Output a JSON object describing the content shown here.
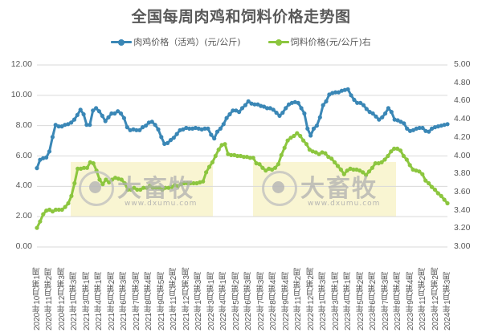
{
  "chart_data": {
    "type": "line",
    "title": "全国每周肉鸡和饲料价格走势图",
    "xlabel": "",
    "ylabel_left": "",
    "ylabel_right": "",
    "left_axis": {
      "min": 0,
      "max": 12,
      "step": 2,
      "ticks": [
        "0.00",
        "2.00",
        "4.00",
        "6.00",
        "8.00",
        "10.00",
        "12.00"
      ]
    },
    "right_axis": {
      "min": 3.0,
      "max": 5.0,
      "step": 0.2,
      "ticks": [
        "3.00",
        "3.20",
        "3.40",
        "3.60",
        "3.80",
        "4.00",
        "4.20",
        "4.40",
        "4.60",
        "4.80",
        "5.00"
      ]
    },
    "grid": true,
    "legend_position": "top",
    "x_tick_labels": [
      "2020年10月第1周",
      "2020年11月第2周",
      "2020年12月第3周",
      "2021年1月第3周",
      "2021年3月第1周",
      "2021年4月第1周",
      "2021年5月第2周",
      "2021年6月第3周",
      "2021年7月第3周",
      "2021年8月第4周",
      "2021年9月第5周",
      "2021年11月第2周",
      "2021年12月第3周",
      "2022年1月第3周",
      "2022年3月第1周",
      "2022年4月第1周",
      "2022年5月第2周",
      "2022年6月第3周",
      "2022年7月第3周",
      "2022年8月第4周",
      "2022年9月第4周",
      "2022年11月第2周",
      "2022年12月第2周",
      "2023年1月第3周",
      "2023年3月第1周",
      "2023年4月第1周",
      "2023年5月第2周",
      "2023年6月第2周",
      "2023年7月第3周",
      "2023年8月第4周",
      "2023年9月第4周",
      "2023年11月第2周",
      "2023年12月第2周",
      "2024年1月第3周"
    ],
    "series": [
      {
        "name": "肉鸡价格（活鸡）(元/公斤)",
        "axis": "left",
        "color": "#3A87B6",
        "values": [
          5.2,
          5.75,
          5.85,
          5.9,
          6.3,
          7.25,
          8.05,
          7.95,
          7.95,
          8.05,
          8.1,
          8.2,
          8.4,
          8.7,
          9.05,
          8.75,
          8.05,
          8.05,
          9.0,
          9.15,
          8.95,
          8.65,
          8.3,
          8.55,
          8.8,
          8.8,
          8.95,
          8.8,
          8.5,
          7.9,
          7.7,
          7.75,
          7.7,
          7.7,
          7.9,
          8.0,
          8.2,
          8.25,
          8.05,
          7.75,
          7.25,
          6.8,
          6.85,
          7.05,
          7.2,
          7.45,
          7.7,
          7.75,
          7.85,
          7.8,
          7.8,
          7.85,
          7.8,
          7.75,
          7.8,
          7.8,
          7.4,
          7.15,
          7.6,
          7.8,
          8.1,
          8.5,
          8.75,
          9.0,
          9.0,
          8.9,
          9.15,
          9.35,
          9.6,
          9.45,
          9.4,
          9.4,
          9.3,
          9.25,
          9.15,
          9.15,
          9.05,
          8.85,
          8.65,
          8.85,
          9.15,
          9.4,
          9.5,
          9.55,
          9.5,
          9.15,
          8.8,
          7.8,
          7.35,
          7.8,
          8.0,
          8.55,
          9.35,
          9.6,
          10.05,
          10.15,
          10.2,
          10.2,
          10.3,
          10.35,
          10.4,
          10.0,
          9.7,
          9.5,
          9.5,
          9.35,
          9.1,
          8.9,
          8.8,
          8.6,
          8.4,
          8.55,
          8.8,
          9.15,
          8.9,
          8.4,
          8.35,
          8.25,
          8.15,
          7.8,
          7.65,
          7.7,
          7.8,
          7.85,
          7.85,
          7.65,
          7.6,
          7.8,
          7.9,
          7.95,
          8.0,
          8.05,
          8.1
        ]
      },
      {
        "name": "饲料价格(元/公斤)右",
        "axis": "right",
        "color": "#8CC63F",
        "values": [
          3.21,
          3.28,
          3.36,
          3.4,
          3.41,
          3.39,
          3.41,
          3.41,
          3.41,
          3.44,
          3.48,
          3.56,
          3.7,
          3.86,
          3.86,
          3.87,
          3.87,
          3.93,
          3.92,
          3.84,
          3.74,
          3.69,
          3.74,
          3.71,
          3.74,
          3.76,
          3.75,
          3.74,
          3.7,
          3.63,
          3.63,
          3.65,
          3.63,
          3.63,
          3.65,
          3.65,
          3.67,
          3.65,
          3.65,
          3.65,
          3.63,
          3.65,
          3.65,
          3.66,
          3.68,
          3.67,
          3.69,
          3.7,
          3.7,
          3.7,
          3.7,
          3.7,
          3.71,
          3.72,
          3.82,
          3.88,
          3.93,
          4.0,
          4.07,
          4.12,
          4.13,
          4.02,
          4.01,
          4.01,
          4.0,
          4.0,
          3.99,
          3.99,
          3.98,
          3.98,
          3.92,
          3.91,
          3.87,
          3.84,
          3.86,
          3.85,
          3.87,
          3.91,
          4.01,
          4.09,
          4.17,
          4.2,
          4.22,
          4.25,
          4.22,
          4.17,
          4.13,
          4.07,
          4.05,
          4.04,
          4.02,
          4.04,
          4.03,
          3.99,
          3.97,
          3.93,
          3.89,
          3.85,
          3.8,
          3.84,
          3.86,
          3.85,
          3.85,
          3.84,
          3.82,
          3.79,
          3.83,
          3.87,
          3.92,
          3.92,
          3.93,
          3.96,
          4.0,
          4.05,
          4.08,
          4.08,
          4.06,
          4.0,
          3.96,
          3.9,
          3.85,
          3.84,
          3.83,
          3.8,
          3.73,
          3.7,
          3.66,
          3.63,
          3.59,
          3.56,
          3.52,
          3.48
        ]
      }
    ]
  },
  "legend": {
    "items": [
      {
        "label": "肉鸡价格（活鸡）(元/公斤)",
        "color": "#3A87B6"
      },
      {
        "label": "饲料价格(元/公斤)右",
        "color": "#8CC63F"
      }
    ]
  },
  "watermark": {
    "brand": "大畜牧",
    "url": "www.dxumu.com"
  }
}
